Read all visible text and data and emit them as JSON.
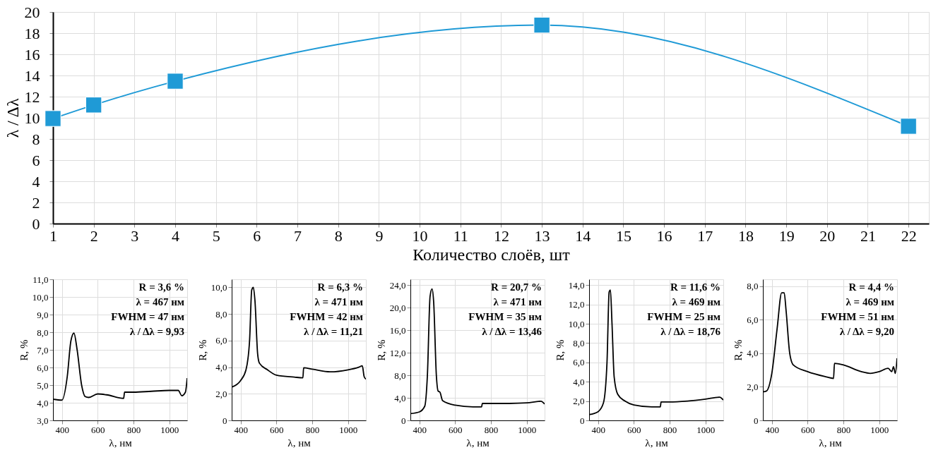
{
  "chart_data": [
    {
      "type": "line",
      "xlabel": "Количество слоёв, шт",
      "ylabel": "λ / Δλ",
      "xlim": [
        1,
        22.5
      ],
      "ylim": [
        0,
        20
      ],
      "xticks": [
        1,
        2,
        3,
        4,
        5,
        6,
        7,
        8,
        9,
        10,
        11,
        12,
        13,
        14,
        15,
        16,
        17,
        18,
        19,
        20,
        21,
        22
      ],
      "yticks": [
        0,
        2,
        4,
        6,
        8,
        10,
        12,
        14,
        16,
        18,
        20
      ],
      "grid": true,
      "marker": "square",
      "line_style": "solid",
      "series": [
        {
          "color": "#1f9ad6",
          "x": [
            1,
            2,
            4,
            13,
            22
          ],
          "values": [
            9.93,
            11.21,
            13.46,
            18.76,
            9.2
          ]
        }
      ]
    },
    {
      "type": "line",
      "xlabel": "λ, нм",
      "ylabel": "R, %",
      "xlim": [
        350,
        1100
      ],
      "ylim": [
        3,
        11
      ],
      "xticks": [
        400,
        600,
        800,
        1000
      ],
      "yticks": [
        {
          "value": 3,
          "label": "3,0"
        },
        {
          "value": 4,
          "label": "4,0"
        },
        {
          "value": 5,
          "label": "5,0"
        },
        {
          "value": 6,
          "label": "6,0"
        },
        {
          "value": 7,
          "label": "7,0"
        },
        {
          "value": 8,
          "label": "8,0"
        },
        {
          "value": 9,
          "label": "9,0"
        },
        {
          "value": 10,
          "label": "10,0"
        },
        {
          "value": 11,
          "label": "11,0"
        }
      ],
      "grid": true,
      "annotations": [
        "R = 3,6 %",
        "λ = 467 нм",
        "FWHM = 47 нм",
        "λ / Δλ = 9,93"
      ],
      "series": [
        {
          "color": "#000000",
          "x": [
            350,
            400,
            430,
            450,
            467,
            485,
            510,
            530,
            550,
            600,
            650,
            745,
            750,
            800,
            900,
            1000,
            1050,
            1070,
            1090,
            1100
          ],
          "values": [
            4.2,
            4.15,
            5.5,
            7.5,
            7.95,
            7.0,
            5.0,
            4.35,
            4.3,
            4.5,
            4.45,
            4.25,
            4.6,
            4.6,
            4.65,
            4.7,
            4.7,
            4.4,
            4.6,
            5.4
          ]
        }
      ]
    },
    {
      "type": "line",
      "xlabel": "λ, нм",
      "ylabel": "R, %",
      "xlim": [
        350,
        1100
      ],
      "ylim": [
        0,
        10.6
      ],
      "xticks": [
        400,
        600,
        800,
        1000
      ],
      "yticks": [
        0,
        {
          "value": 2,
          "label": "2,0"
        },
        {
          "value": 4,
          "label": "4,0"
        },
        {
          "value": 6,
          "label": "6,0"
        },
        {
          "value": 8,
          "label": "8,0"
        },
        {
          "value": 10,
          "label": "10,0"
        }
      ],
      "grid": true,
      "annotations": [
        "R = 6,3 %",
        "λ = 471 нм",
        "FWHM = 42 нм",
        "λ / Δλ = 11,21"
      ],
      "series": [
        {
          "color": "#000000",
          "x": [
            350,
            400,
            430,
            450,
            462,
            471,
            480,
            495,
            505,
            550,
            600,
            700,
            748,
            752,
            800,
            900,
            1000,
            1060,
            1080,
            1090,
            1100
          ],
          "values": [
            2.5,
            3.0,
            3.8,
            6.0,
            9.8,
            10.0,
            9.0,
            5.0,
            4.3,
            3.8,
            3.4,
            3.25,
            3.2,
            3.95,
            3.85,
            3.65,
            3.8,
            4.0,
            4.1,
            3.3,
            3.1
          ]
        }
      ]
    },
    {
      "type": "line",
      "xlabel": "λ, нм",
      "ylabel": "R, %",
      "xlim": [
        350,
        1100
      ],
      "ylim": [
        0,
        25
      ],
      "xticks": [
        400,
        600,
        800,
        1000
      ],
      "yticks": [
        0,
        {
          "value": 4,
          "label": "4,0"
        },
        {
          "value": 8,
          "label": "8,0"
        },
        {
          "value": 12,
          "label": "12,0"
        },
        {
          "value": 16,
          "label": "16,0"
        },
        {
          "value": 20,
          "label": "20,0"
        },
        {
          "value": 24,
          "label": "24,0"
        }
      ],
      "grid": true,
      "annotations": [
        "R = 20,7 %",
        "λ = 471 нм",
        "FWHM = 35 нм",
        "λ / Δλ = 13,46"
      ],
      "series": [
        {
          "color": "#000000",
          "x": [
            350,
            400,
            430,
            445,
            460,
            471,
            480,
            495,
            505,
            515,
            530,
            600,
            700,
            748,
            752,
            900,
            1000,
            1080,
            1100
          ],
          "values": [
            1.2,
            1.5,
            2.5,
            8,
            22,
            23.3,
            21,
            8,
            5.2,
            5.0,
            3.5,
            2.7,
            2.4,
            2.4,
            3.0,
            3.0,
            3.1,
            3.4,
            2.9
          ]
        }
      ]
    },
    {
      "type": "line",
      "xlabel": "λ, нм",
      "ylabel": "R, %",
      "xlim": [
        350,
        1100
      ],
      "ylim": [
        0,
        14.6
      ],
      "xticks": [
        400,
        600,
        800,
        1000
      ],
      "yticks": [
        0,
        {
          "value": 2,
          "label": "2,0"
        },
        {
          "value": 4,
          "label": "4,0"
        },
        {
          "value": 6,
          "label": "6,0"
        },
        {
          "value": 8,
          "label": "8,0"
        },
        {
          "value": 10,
          "label": "10,0"
        },
        {
          "value": 12,
          "label": "12,0"
        },
        {
          "value": 14,
          "label": "14,0"
        }
      ],
      "grid": true,
      "annotations": [
        "R = 11,6 %",
        "λ = 469 нм",
        "FWHM = 25 нм",
        "λ / Δλ = 18,76"
      ],
      "series": [
        {
          "color": "#000000",
          "x": [
            350,
            400,
            430,
            450,
            462,
            469,
            478,
            490,
            510,
            550,
            600,
            700,
            748,
            752,
            800,
            900,
            1000,
            1080,
            1100
          ],
          "values": [
            0.6,
            0.9,
            1.8,
            6,
            13.3,
            13.5,
            10,
            4.5,
            2.7,
            2.0,
            1.6,
            1.4,
            1.4,
            1.9,
            1.9,
            2.0,
            2.2,
            2.4,
            2.1
          ]
        }
      ]
    },
    {
      "type": "line",
      "xlabel": "λ, нм",
      "ylabel": "R, %",
      "xlim": [
        350,
        1100
      ],
      "ylim": [
        0,
        8.4
      ],
      "xticks": [
        400,
        600,
        800,
        1000
      ],
      "yticks": [
        0,
        {
          "value": 2,
          "label": "2,0"
        },
        {
          "value": 4,
          "label": "4,0"
        },
        {
          "value": 6,
          "label": "6,0"
        },
        {
          "value": 8,
          "label": "8,0"
        }
      ],
      "grid": true,
      "annotations": [
        "R = 4,4 %",
        "λ = 469 нм",
        "FWHM = 51 нм",
        "λ / Δλ = 9,20"
      ],
      "series": [
        {
          "color": "#000000",
          "x": [
            350,
            370,
            400,
            430,
            455,
            469,
            480,
            500,
            520,
            600,
            700,
            745,
            750,
            800,
            900,
            950,
            1000,
            1050,
            1070,
            1080,
            1090,
            1100
          ],
          "values": [
            1.7,
            1.75,
            2.8,
            5.5,
            7.6,
            7.6,
            6.5,
            4.0,
            3.3,
            2.9,
            2.6,
            2.5,
            3.4,
            3.3,
            2.9,
            2.8,
            2.9,
            3.1,
            2.9,
            3.2,
            2.8,
            3.7
          ]
        }
      ]
    }
  ]
}
